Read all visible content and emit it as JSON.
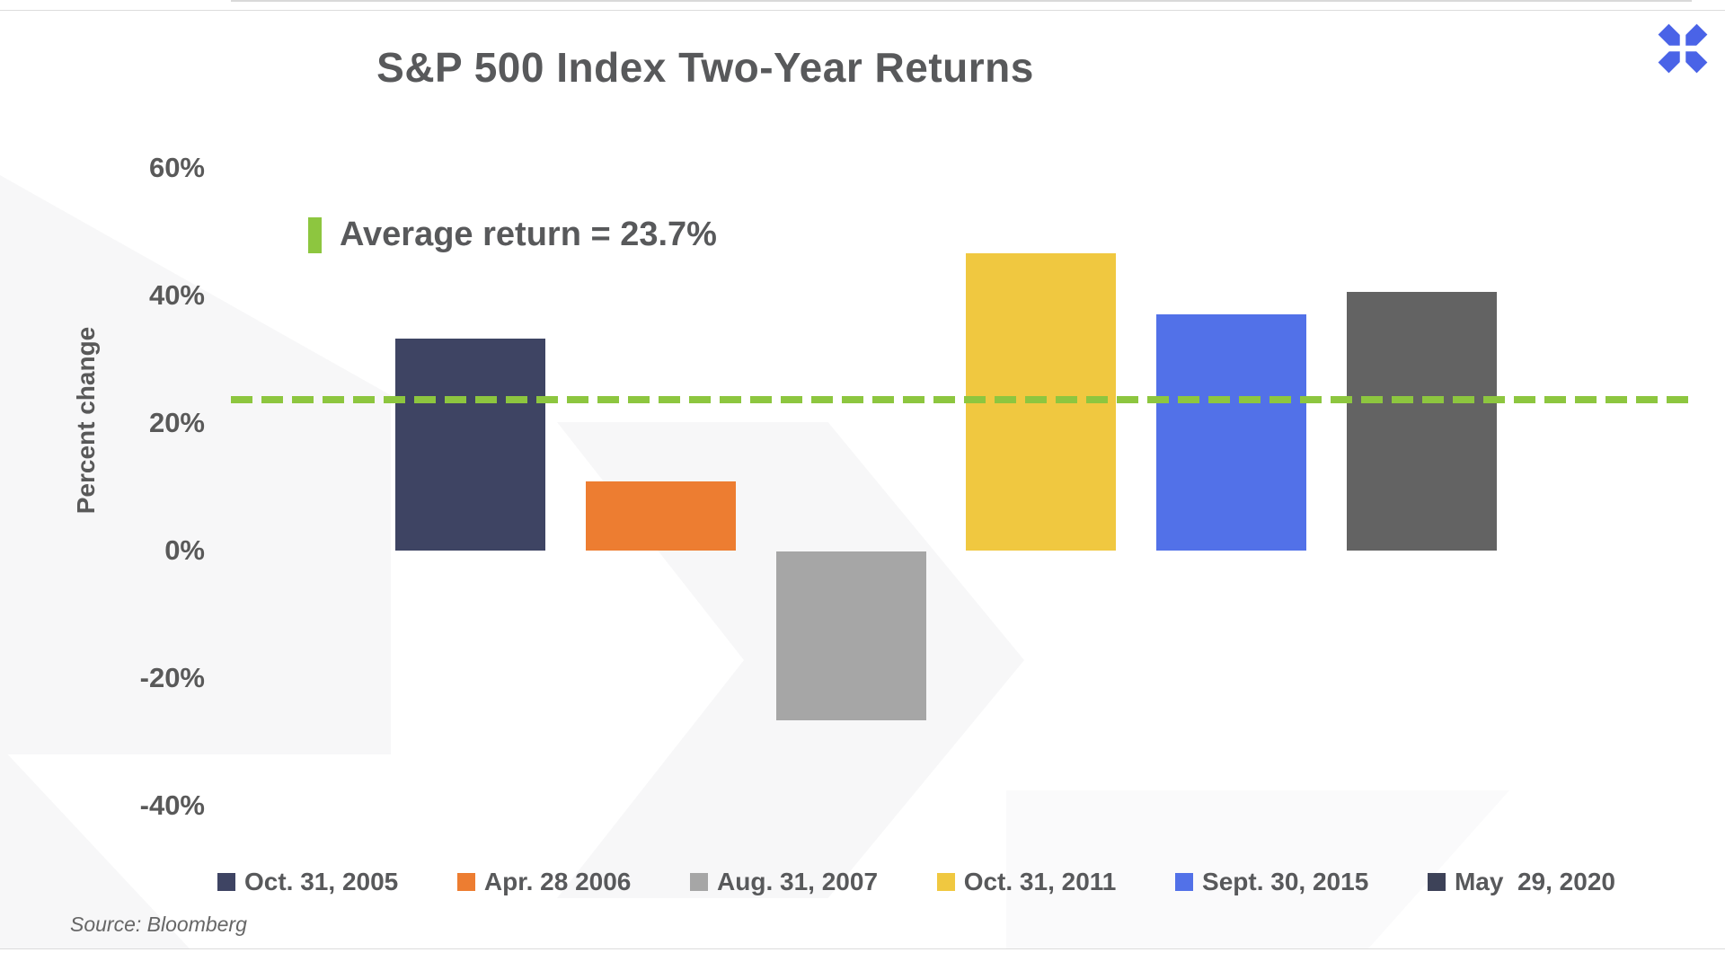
{
  "page": {
    "source": "Source: Bloomberg",
    "logo": "blue-x-pinwheel-logo",
    "logo_color": "#4A63E7",
    "background_watermark_color": "#f7f7f8"
  },
  "chart_data": {
    "type": "bar",
    "title": "S&P 500 Index Two-Year Returns",
    "ylabel": "Percent change",
    "xlabel": "",
    "categories": [
      "Oct. 31, 2005",
      "Apr. 28 2006",
      "Aug. 31, 2007",
      "Oct. 31, 2011",
      "Sept. 30, 2015",
      "May  29, 2020"
    ],
    "values": [
      33.2,
      10.9,
      -26.5,
      46.6,
      37.0,
      40.6
    ],
    "bar_colors": [
      "#3E4463",
      "#ED7D31",
      "#A6A6A6",
      "#F0C840",
      "#5271E8",
      "#636363"
    ],
    "legend_colors": [
      "#3E4463",
      "#ED7D31",
      "#A6A6A6",
      "#F0C840",
      "#5271E8",
      "#3D4258"
    ],
    "yticks": [
      {
        "label": "60%",
        "value": 60
      },
      {
        "label": "40%",
        "value": 40
      },
      {
        "label": "20%",
        "value": 20
      },
      {
        "label": "0%",
        "value": 0
      },
      {
        "label": "-20%",
        "value": -20
      },
      {
        "label": "-40%",
        "value": -40
      }
    ],
    "ylim": [
      -48,
      66
    ],
    "grid": "zero-line-only",
    "legend_position": "bottom",
    "average": {
      "value": 23.7,
      "label": "Average return = 23.7%",
      "color": "#8DC63F",
      "line_style": "dashed"
    }
  }
}
